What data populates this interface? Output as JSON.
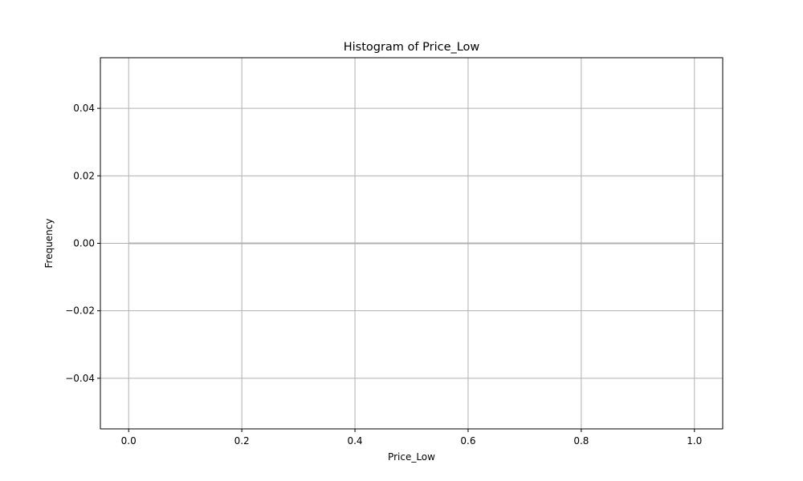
{
  "chart_data": {
    "type": "bar",
    "title": "Histogram of Price_Low",
    "xlabel": "Price_Low",
    "ylabel": "Frequency",
    "xlim": [
      -0.05,
      1.05
    ],
    "ylim": [
      -0.055,
      0.055
    ],
    "x_ticks": [
      0.0,
      0.2,
      0.4,
      0.6,
      0.8,
      1.0
    ],
    "x_tick_labels": [
      "0.0",
      "0.2",
      "0.4",
      "0.6",
      "0.8",
      "1.0"
    ],
    "y_ticks": [
      -0.04,
      -0.02,
      0.0,
      0.02,
      0.04
    ],
    "y_tick_labels": [
      "−0.04",
      "−0.02",
      "0.00",
      "0.02",
      "0.04"
    ],
    "grid": true,
    "bins": [
      {
        "start": 0.0,
        "end": 0.1,
        "count": 0
      },
      {
        "start": 0.1,
        "end": 0.2,
        "count": 0
      },
      {
        "start": 0.2,
        "end": 0.3,
        "count": 0
      },
      {
        "start": 0.3,
        "end": 0.4,
        "count": 0
      },
      {
        "start": 0.4,
        "end": 0.5,
        "count": 0
      },
      {
        "start": 0.5,
        "end": 0.6,
        "count": 0
      },
      {
        "start": 0.6,
        "end": 0.7,
        "count": 0
      },
      {
        "start": 0.7,
        "end": 0.8,
        "count": 0
      },
      {
        "start": 0.8,
        "end": 0.9,
        "count": 0
      },
      {
        "start": 0.9,
        "end": 1.0,
        "count": 0
      }
    ],
    "colors": {
      "bar_edge": "#b0b0b0",
      "grid": "#b0b0b0",
      "axes": "#000000"
    }
  }
}
